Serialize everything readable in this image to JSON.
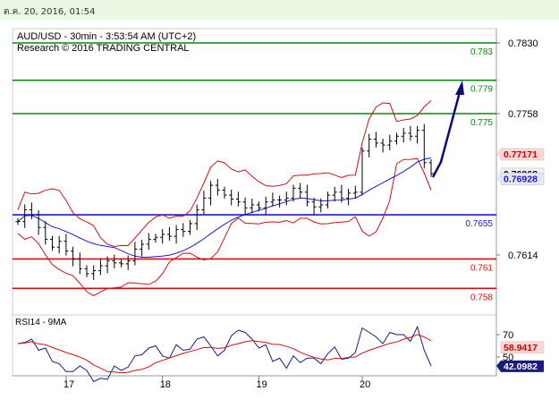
{
  "header": {
    "timestamp": "ต.ค. 20, 2016, 01:54"
  },
  "chart_data": {
    "type": "line",
    "title": "AUD/USD - 30min - 3:53:54 AM (UTC+2)",
    "subtitle": "Research © 2016 TRADING CENTRAL",
    "price_axis": {
      "ticks": [
        "0.7830",
        "0.7758",
        "0.7614"
      ],
      "range": [
        0.756,
        0.786
      ]
    },
    "levels": [
      {
        "label": "0.783",
        "value": 0.783,
        "color": "#0a8a12"
      },
      {
        "label": "0.779",
        "value": 0.7792,
        "color": "#0a8a12"
      },
      {
        "label": "0.775",
        "value": 0.7758,
        "color": "#0a8a12"
      },
      {
        "label": "0.7655",
        "value": 0.7655,
        "color": "#1a1ad0"
      },
      {
        "label": "0.761",
        "value": 0.761,
        "color": "#d01010"
      },
      {
        "label": "0.758",
        "value": 0.758,
        "color": "#d01010"
      }
    ],
    "price_tags": [
      {
        "label": "0.77171",
        "value": 0.7717,
        "bg": "#ffd7d7",
        "fg": "#cc0000"
      },
      {
        "label": "0.76968",
        "value": 0.7697,
        "bg": "#f0f0f0",
        "fg": "#000000"
      },
      {
        "label": "0.76928",
        "value": 0.7692,
        "bg": "#e6e6ff",
        "fg": "#1a1ad0"
      }
    ],
    "close_prices": [
      0.7648,
      0.766,
      0.7655,
      0.7642,
      0.763,
      0.7622,
      0.7628,
      0.7618,
      0.761,
      0.76,
      0.7595,
      0.7598,
      0.7603,
      0.7608,
      0.7606,
      0.7605,
      0.7608,
      0.762,
      0.7625,
      0.763,
      0.7632,
      0.7635,
      0.7633,
      0.764,
      0.7638,
      0.7646,
      0.766,
      0.7672,
      0.7685,
      0.768,
      0.7675,
      0.7671,
      0.7668,
      0.7662,
      0.7665,
      0.7662,
      0.7668,
      0.767,
      0.767,
      0.7672,
      0.7682,
      0.7678,
      0.7668,
      0.7663,
      0.7665,
      0.7675,
      0.7678,
      0.7672,
      0.7677,
      0.7678,
      0.772,
      0.7732,
      0.7728,
      0.7726,
      0.773,
      0.7735,
      0.7738,
      0.7735,
      0.7741,
      0.7708,
      0.7697
    ],
    "indicator": {
      "title": "RSI14 - 9MA",
      "ticks": [
        "70",
        "50"
      ],
      "range": [
        20,
        85
      ],
      "rsi_tag": {
        "label": "42.0982",
        "value": 42.1
      },
      "ma_tag": {
        "label": "58.9417",
        "value": 58.9
      },
      "rsi_values": [
        62,
        63,
        66,
        56,
        58,
        46,
        44,
        37,
        37,
        42,
        38,
        28,
        31,
        30,
        42,
        38,
        41,
        51,
        52,
        58,
        60,
        51,
        49,
        61,
        56,
        57,
        66,
        68,
        60,
        51,
        56,
        69,
        74,
        72,
        66,
        58,
        61,
        46,
        49,
        40,
        51,
        45,
        49,
        49,
        44,
        53,
        59,
        48,
        49,
        54,
        76,
        72,
        68,
        62,
        72,
        70,
        70,
        64,
        77,
        56,
        42
      ]
    },
    "x_labels": [
      "17",
      "18",
      "19",
      "20"
    ]
  }
}
